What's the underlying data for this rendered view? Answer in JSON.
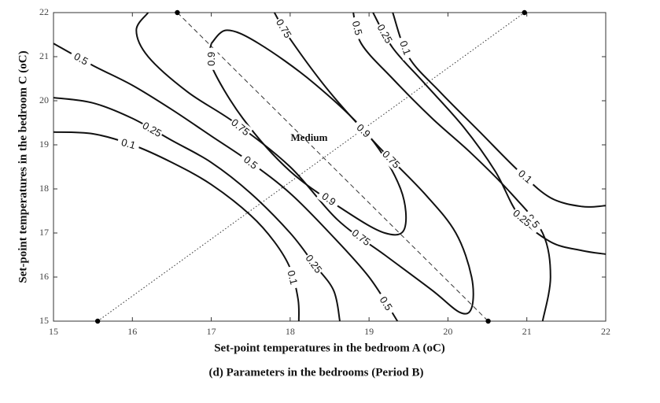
{
  "chart_data": {
    "type": "contour",
    "xlabel": "Set-point temperatures in the bedroom A (oC)",
    "ylabel": "Set-point temperatures in the bedroom C (oC)",
    "caption": "(d) Parameters in the bedrooms (Period B)",
    "annotation": "Medium",
    "xlim": [
      15,
      22
    ],
    "ylim": [
      15,
      22
    ],
    "xticks": [
      15,
      16,
      17,
      18,
      19,
      20,
      21,
      22
    ],
    "yticks": [
      15,
      16,
      17,
      18,
      19,
      20,
      21,
      22
    ],
    "color": "#111111",
    "series": [
      {
        "level": 0.1,
        "x": [
          15,
          15.5,
          16,
          16.5,
          17,
          17.5,
          17.8,
          18.0,
          18.1,
          18.11
        ],
        "y": [
          19.29,
          19.25,
          19.0,
          18.6,
          18.1,
          17.4,
          16.8,
          16.2,
          15.5,
          15
        ]
      },
      {
        "level": 0.25,
        "x": [
          15,
          15.5,
          16,
          16.5,
          17,
          17.5,
          18,
          18.3,
          18.55,
          18.63
        ],
        "y": [
          20.07,
          19.95,
          19.6,
          19.1,
          18.6,
          17.9,
          17.0,
          16.3,
          15.7,
          15
        ]
      },
      {
        "level": 0.5,
        "x": [
          15,
          15.5,
          16,
          16.5,
          17,
          17.5,
          18,
          18.5,
          19,
          19.36
        ],
        "y": [
          21.3,
          20.8,
          20.35,
          19.8,
          19.2,
          18.6,
          17.9,
          17.0,
          16.0,
          15
        ]
      },
      {
        "level": 0.75,
        "x": [
          16.2,
          16.05,
          16.2,
          16.7,
          17.3,
          18,
          18.6,
          19.2,
          19.8,
          20.15,
          20.3,
          20.3,
          20.1,
          19.7,
          19.1,
          18.5,
          18.0,
          17.8
        ],
        "y": [
          22,
          21.6,
          21.0,
          20.2,
          19.5,
          18.5,
          17.3,
          16.5,
          15.7,
          15.2,
          15.3,
          16.0,
          17.0,
          17.9,
          19.0,
          20.2,
          21.4,
          22
        ]
      },
      {
        "level": 0.9,
        "x": [
          17.0,
          17.2,
          17.6,
          18.3,
          19.0,
          19.4,
          19.45,
          19.2,
          18.7,
          18.0,
          17.4,
          17.0,
          17.0
        ],
        "y": [
          21.3,
          21.6,
          21.3,
          20.4,
          19.2,
          18.0,
          17.1,
          17.0,
          17.5,
          18.4,
          19.6,
          20.8,
          21.3
        ]
      },
      {
        "level": 0.5,
        "x": [
          18.8,
          18.9,
          19.3,
          19.8,
          20.3,
          20.8,
          21.2,
          21.3,
          21.2
        ],
        "y": [
          22,
          21.3,
          20.5,
          19.6,
          18.8,
          17.9,
          17.0,
          16.0,
          15.0
        ]
      },
      {
        "level": 0.25,
        "x": [
          19.05,
          19.3,
          19.7,
          20.2,
          20.6,
          20.9,
          21.3,
          21.7,
          22
        ],
        "y": [
          22,
          21.2,
          20.4,
          19.4,
          18.4,
          17.4,
          16.8,
          16.6,
          16.52
        ]
      },
      {
        "level": 0.1,
        "x": [
          19.3,
          19.5,
          19.9,
          20.4,
          20.9,
          21.3,
          21.7,
          22
        ],
        "y": [
          22,
          21.0,
          20.2,
          19.3,
          18.4,
          17.8,
          17.6,
          17.62
        ]
      }
    ],
    "lines": [
      {
        "style": "dashed",
        "x": [
          16.57,
          20.51
        ],
        "y": [
          22,
          15
        ]
      },
      {
        "style": "dotted",
        "x": [
          15.56,
          20.97
        ],
        "y": [
          15,
          22
        ]
      }
    ]
  }
}
